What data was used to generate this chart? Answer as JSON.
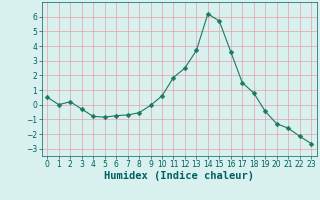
{
  "x": [
    0,
    1,
    2,
    3,
    4,
    5,
    6,
    7,
    8,
    9,
    10,
    11,
    12,
    13,
    14,
    15,
    16,
    17,
    18,
    19,
    20,
    21,
    22,
    23
  ],
  "y": [
    0.5,
    0.0,
    0.2,
    -0.3,
    -0.8,
    -0.85,
    -0.75,
    -0.7,
    -0.55,
    -0.05,
    0.6,
    1.85,
    2.5,
    3.7,
    6.2,
    5.7,
    3.6,
    1.5,
    0.8,
    -0.45,
    -1.3,
    -1.6,
    -2.15,
    -2.65
  ],
  "line_color": "#1a7a60",
  "marker": "D",
  "marker_size": 2.5,
  "bg_color": "#d8f0ee",
  "grid_color": "#e8a0a8",
  "xlabel": "Humidex (Indice chaleur)",
  "xlim": [
    -0.5,
    23.5
  ],
  "ylim": [
    -3.5,
    7.0
  ],
  "yticks": [
    -3,
    -2,
    -1,
    0,
    1,
    2,
    3,
    4,
    5,
    6
  ],
  "xticks": [
    0,
    1,
    2,
    3,
    4,
    5,
    6,
    7,
    8,
    9,
    10,
    11,
    12,
    13,
    14,
    15,
    16,
    17,
    18,
    19,
    20,
    21,
    22,
    23
  ],
  "tick_fontsize": 5.5,
  "xlabel_fontsize": 7.5,
  "label_color": "#006060"
}
